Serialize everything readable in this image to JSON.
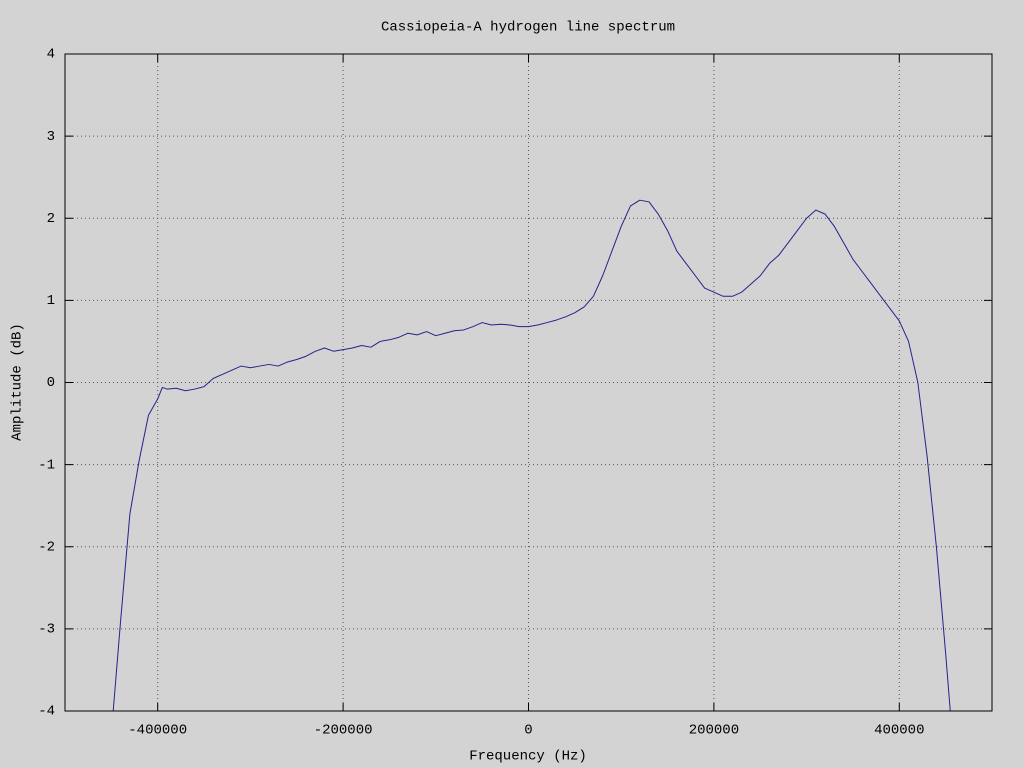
{
  "chart_data": {
    "type": "line",
    "title": "Cassiopeia-A hydrogen line spectrum",
    "x_label": "Frequency (Hz)",
    "y_label": "Amplitude (dB)",
    "xlim": [
      -500000,
      500000
    ],
    "ylim": [
      -4,
      4
    ],
    "xticks": [
      -400000,
      -200000,
      0,
      200000,
      400000
    ],
    "yticks": [
      -4,
      -3,
      -2,
      -1,
      0,
      1,
      2,
      3,
      4
    ],
    "grid": true,
    "x": [
      -448000,
      -440000,
      -430000,
      -420000,
      -410000,
      -400000,
      -395000,
      -390000,
      -380000,
      -370000,
      -360000,
      -350000,
      -340000,
      -330000,
      -320000,
      -310000,
      -300000,
      -290000,
      -280000,
      -270000,
      -260000,
      -250000,
      -240000,
      -230000,
      -220000,
      -210000,
      -200000,
      -190000,
      -180000,
      -170000,
      -160000,
      -150000,
      -140000,
      -130000,
      -120000,
      -110000,
      -100000,
      -90000,
      -80000,
      -70000,
      -60000,
      -50000,
      -40000,
      -30000,
      -20000,
      -10000,
      0,
      10000,
      20000,
      30000,
      40000,
      50000,
      60000,
      70000,
      80000,
      90000,
      100000,
      110000,
      120000,
      130000,
      140000,
      150000,
      160000,
      170000,
      180000,
      190000,
      200000,
      210000,
      220000,
      230000,
      240000,
      250000,
      260000,
      270000,
      280000,
      290000,
      300000,
      310000,
      320000,
      330000,
      340000,
      350000,
      360000,
      370000,
      380000,
      390000,
      400000,
      410000,
      420000,
      430000,
      440000,
      450000,
      455000
    ],
    "series": [
      {
        "color": "#23238c",
        "values": [
          -4,
          -2.9,
          -1.6,
          -0.95,
          -0.4,
          -0.2,
          -0.06,
          -0.08,
          -0.07,
          -0.1,
          -0.08,
          -0.05,
          0.05,
          0.1,
          0.15,
          0.2,
          0.18,
          0.2,
          0.22,
          0.2,
          0.25,
          0.28,
          0.32,
          0.38,
          0.42,
          0.38,
          0.4,
          0.42,
          0.45,
          0.43,
          0.5,
          0.52,
          0.55,
          0.6,
          0.58,
          0.62,
          0.57,
          0.6,
          0.63,
          0.64,
          0.68,
          0.73,
          0.7,
          0.71,
          0.7,
          0.68,
          0.68,
          0.7,
          0.73,
          0.76,
          0.8,
          0.85,
          0.92,
          1.05,
          1.3,
          1.6,
          1.9,
          2.15,
          2.22,
          2.2,
          2.05,
          1.85,
          1.6,
          1.45,
          1.3,
          1.15,
          1.1,
          1.05,
          1.05,
          1.1,
          1.2,
          1.3,
          1.45,
          1.55,
          1.7,
          1.85,
          2.0,
          2.1,
          2.05,
          1.9,
          1.7,
          1.5,
          1.35,
          1.2,
          1.05,
          0.9,
          0.75,
          0.5,
          0.0,
          -0.9,
          -2.0,
          -3.3,
          -4
        ]
      }
    ]
  }
}
